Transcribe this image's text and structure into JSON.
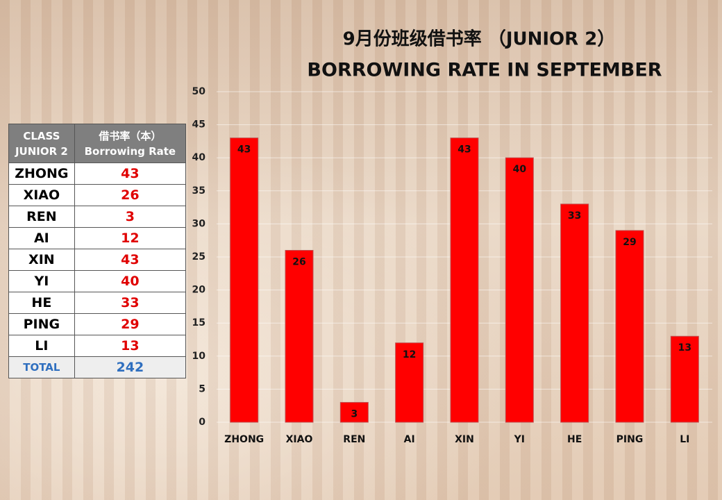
{
  "chart_data": {
    "type": "bar",
    "title": "9月份班级借书率 （JUNIOR 2）",
    "subtitle": "BORROWING RATE IN SEPTEMBER",
    "categories": [
      "ZHONG",
      "XIAO",
      "REN",
      "AI",
      "XIN",
      "YI",
      "HE",
      "PING",
      "LI"
    ],
    "values": [
      43,
      26,
      3,
      12,
      43,
      40,
      33,
      29,
      13
    ],
    "color": "#ff0000",
    "ylim": [
      0,
      50
    ],
    "yticks": [
      0,
      5,
      10,
      15,
      20,
      25,
      30,
      35,
      40,
      45,
      50
    ],
    "grid": true
  },
  "table": {
    "header": [
      [
        "CLASS",
        "JUNIOR 2"
      ],
      [
        "借书率（本）",
        "Borrowing Rate"
      ]
    ],
    "rows": [
      [
        "ZHONG",
        43
      ],
      [
        "XIAO",
        26
      ],
      [
        "REN",
        3
      ],
      [
        "AI",
        12
      ],
      [
        "XIN",
        43
      ],
      [
        "YI",
        40
      ],
      [
        "HE",
        33
      ],
      [
        "PING",
        29
      ],
      [
        "LI",
        13
      ]
    ],
    "total": [
      "TOTAL",
      242
    ]
  }
}
